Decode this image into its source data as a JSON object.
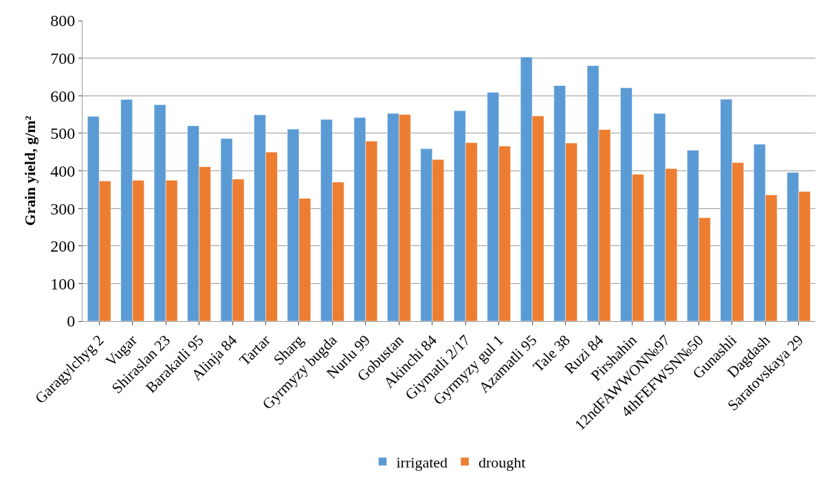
{
  "chart_data": {
    "type": "bar",
    "ylabel": "Grain yield, g/m²",
    "categories": [
      "Garagylchyg 2",
      "Vugar",
      "Shiraslan 23",
      "Barakatli 95",
      "Alinja 84",
      "Tartar",
      "Sharg",
      "Gyrmyzy bugda",
      "Nurlu 99",
      "Gobustan",
      "Akinchi 84",
      "Giymatli 2/17",
      "Gyrmyzy gul 1",
      "Azamatli 95",
      "Tale 38",
      "Ruzi 84",
      "Pirshahin",
      "12ndFAWWON№97",
      "4thFEFWSN№50",
      "Gunashli",
      "Dagdash",
      "Saratovskaya 29"
    ],
    "series": [
      {
        "name": "irrigated",
        "color": "#5b9bd5",
        "values": [
          545,
          590,
          576,
          520,
          486,
          549,
          511,
          537,
          542,
          553,
          459,
          560,
          609,
          703,
          627,
          680,
          621,
          553,
          455,
          591,
          471,
          396
        ]
      },
      {
        "name": "drought",
        "color": "#ed7d31",
        "values": [
          373,
          375,
          375,
          411,
          378,
          450,
          327,
          370,
          479,
          550,
          430,
          475,
          466,
          546,
          474,
          510,
          391,
          406,
          275,
          422,
          336,
          345
        ]
      }
    ],
    "ylim": [
      0,
      800
    ],
    "yticks": [
      0,
      100,
      200,
      300,
      400,
      500,
      600,
      700,
      800
    ],
    "grid": "y",
    "legend": "bottom"
  }
}
